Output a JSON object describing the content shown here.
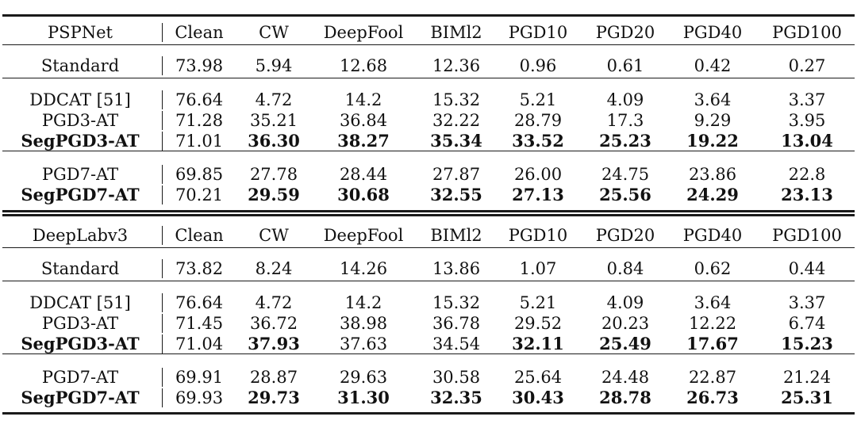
{
  "tables": [
    {
      "header": [
        "PSPNet",
        "Clean",
        "CW",
        "DeepFool",
        "BIMl2",
        "PGD10",
        "PGD20",
        "PGD40",
        "PGD100"
      ],
      "groups": [
        [
          {
            "name": "Standard",
            "values": [
              "73.98",
              "5.94",
              "12.68",
              "12.36",
              "0.96",
              "0.61",
              "0.42",
              "0.27"
            ],
            "bold": [
              false,
              false,
              false,
              false,
              false,
              false,
              false,
              false
            ],
            "name_bold": false
          }
        ],
        [
          {
            "name": "DDCAT [51]",
            "values": [
              "76.64",
              "4.72",
              "14.2",
              "15.32",
              "5.21",
              "4.09",
              "3.64",
              "3.37"
            ],
            "bold": [
              false,
              false,
              false,
              false,
              false,
              false,
              false,
              false
            ],
            "name_bold": false
          },
          {
            "name": "PGD3-AT",
            "values": [
              "71.28",
              "35.21",
              "36.84",
              "32.22",
              "28.79",
              "17.3",
              "9.29",
              "3.95"
            ],
            "bold": [
              false,
              false,
              false,
              false,
              false,
              false,
              false,
              false
            ],
            "name_bold": false
          },
          {
            "name": "SegPGD3-AT",
            "values": [
              "71.01",
              "36.30",
              "38.27",
              "35.34",
              "33.52",
              "25.23",
              "19.22",
              "13.04"
            ],
            "bold": [
              false,
              true,
              true,
              true,
              true,
              true,
              true,
              true
            ],
            "name_bold": true
          }
        ],
        [
          {
            "name": "PGD7-AT",
            "values": [
              "69.85",
              "27.78",
              "28.44",
              "27.87",
              "26.00",
              "24.75",
              "23.86",
              "22.8"
            ],
            "bold": [
              false,
              false,
              false,
              false,
              false,
              false,
              false,
              false
            ],
            "name_bold": false
          },
          {
            "name": "SegPGD7-AT",
            "values": [
              "70.21",
              "29.59",
              "30.68",
              "32.55",
              "27.13",
              "25.56",
              "24.29",
              "23.13"
            ],
            "bold": [
              false,
              true,
              true,
              true,
              true,
              true,
              true,
              true
            ],
            "name_bold": true
          }
        ]
      ]
    },
    {
      "header": [
        "DeepLabv3",
        "Clean",
        "CW",
        "DeepFool",
        "BIMl2",
        "PGD10",
        "PGD20",
        "PGD40",
        "PGD100"
      ],
      "groups": [
        [
          {
            "name": "Standard",
            "values": [
              "73.82",
              "8.24",
              "14.26",
              "13.86",
              "1.07",
              "0.84",
              "0.62",
              "0.44"
            ],
            "bold": [
              false,
              false,
              false,
              false,
              false,
              false,
              false,
              false
            ],
            "name_bold": false
          }
        ],
        [
          {
            "name": "DDCAT [51]",
            "values": [
              "76.64",
              "4.72",
              "14.2",
              "15.32",
              "5.21",
              "4.09",
              "3.64",
              "3.37"
            ],
            "bold": [
              false,
              false,
              false,
              false,
              false,
              false,
              false,
              false
            ],
            "name_bold": false
          },
          {
            "name": "PGD3-AT",
            "values": [
              "71.45",
              "36.72",
              "38.98",
              "36.78",
              "29.52",
              "20.23",
              "12.22",
              "6.74"
            ],
            "bold": [
              false,
              false,
              false,
              false,
              false,
              false,
              false,
              false
            ],
            "name_bold": false
          },
          {
            "name": "SegPGD3-AT",
            "values": [
              "71.04",
              "37.93",
              "37.63",
              "34.54",
              "32.11",
              "25.49",
              "17.67",
              "15.23"
            ],
            "bold": [
              false,
              true,
              false,
              false,
              true,
              true,
              true,
              true
            ],
            "name_bold": true
          }
        ],
        [
          {
            "name": "PGD7-AT",
            "values": [
              "69.91",
              "28.87",
              "29.63",
              "30.58",
              "25.64",
              "24.48",
              "22.87",
              "21.24"
            ],
            "bold": [
              false,
              false,
              false,
              false,
              false,
              false,
              false,
              false
            ],
            "name_bold": false
          },
          {
            "name": "SegPGD7-AT",
            "values": [
              "69.93",
              "29.73",
              "31.30",
              "32.35",
              "30.43",
              "28.78",
              "26.73",
              "25.31"
            ],
            "bold": [
              false,
              true,
              true,
              true,
              true,
              true,
              true,
              true
            ],
            "name_bold": true
          }
        ]
      ]
    }
  ]
}
